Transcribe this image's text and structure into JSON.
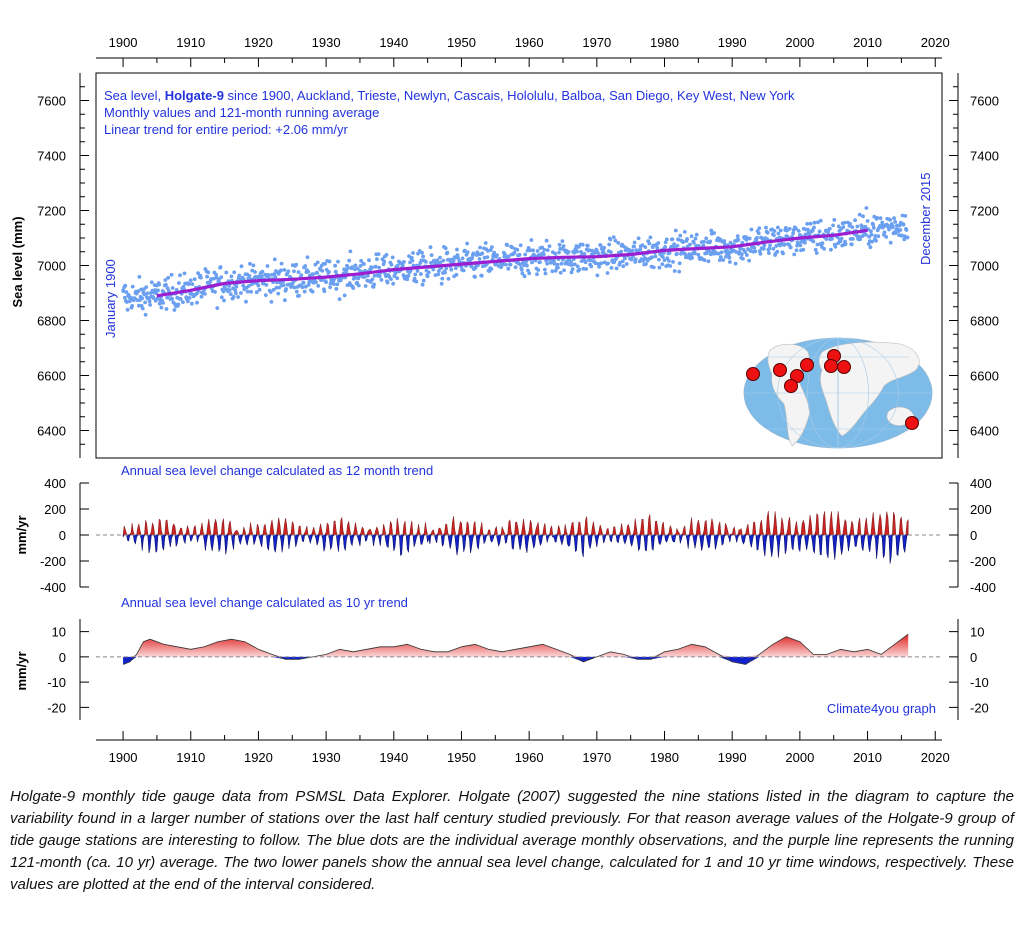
{
  "chart_data": [
    {
      "type": "scatter",
      "title_parts": [
        "Sea level, ",
        "Holgate-9",
        " since 1900, Auckland, Trieste, Newlyn, Cascais, Hololulu, Balboa, San Diego, Key West, New York"
      ],
      "subtitle1": "Monthly values and 121-month running average",
      "subtitle2": "Linear trend for entire period: +2.06 mm/yr",
      "ylabel": "Sea level (mm)",
      "ylim": [
        6300,
        7700
      ],
      "xlim": [
        1896,
        2021
      ],
      "yticks": [
        "6400",
        "6600",
        "6800",
        "7000",
        "7200",
        "7400",
        "7600"
      ],
      "start_label": "January 1900",
      "end_label": "December 2015",
      "dot_color": "#6b9ff0",
      "line_color": "#9b1fd0",
      "running_average": {
        "x": [
          1905,
          1910,
          1915,
          1920,
          1925,
          1930,
          1935,
          1940,
          1945,
          1950,
          1955,
          1960,
          1965,
          1970,
          1975,
          1980,
          1985,
          1990,
          1995,
          2000,
          2005,
          2010
        ],
        "y": [
          6890,
          6910,
          6935,
          6945,
          6950,
          6958,
          6970,
          6985,
          6995,
          7005,
          7015,
          7025,
          7030,
          7032,
          7040,
          7055,
          7062,
          7068,
          7085,
          7100,
          7110,
          7128
        ]
      },
      "map_stations": 9
    },
    {
      "type": "area",
      "title": "Annual sea level change calculated as 12 month trend",
      "ylabel": "mm/yr",
      "ylim": [
        -400,
        400
      ],
      "yticks": [
        "-400",
        "-200",
        "0",
        "200",
        "400"
      ],
      "pos_color": "#cc2222",
      "neg_color": "#1122cc"
    },
    {
      "type": "area",
      "title": "Annual sea level change calculated as 10 yr trend",
      "ylabel": "mm/yr",
      "ylim": [
        -25,
        15
      ],
      "yticks": [
        "-20",
        "-10",
        "0",
        "10"
      ],
      "x": [
        1900,
        1901,
        1902,
        1903,
        1904,
        1906,
        1908,
        1910,
        1912,
        1914,
        1916,
        1918,
        1920,
        1922,
        1924,
        1926,
        1928,
        1930,
        1932,
        1934,
        1936,
        1938,
        1940,
        1942,
        1944,
        1946,
        1948,
        1950,
        1952,
        1954,
        1956,
        1958,
        1960,
        1962,
        1964,
        1966,
        1968,
        1970,
        1972,
        1974,
        1976,
        1978,
        1980,
        1982,
        1984,
        1986,
        1988,
        1990,
        1992,
        1994,
        1996,
        1998,
        2000,
        2002,
        2004,
        2006,
        2008,
        2010,
        2012,
        2014,
        2016
      ],
      "values": [
        -3,
        -2,
        1,
        6,
        7,
        5,
        4,
        3,
        4,
        6,
        7,
        6,
        3,
        1,
        -1,
        -1,
        0,
        1,
        3,
        2,
        3,
        4,
        4,
        5,
        3,
        2,
        2,
        4,
        5,
        3,
        2,
        3,
        4,
        5,
        3,
        1,
        -2,
        0,
        2,
        1,
        -1,
        -1,
        2,
        3,
        5,
        4,
        1,
        -2,
        -3,
        1,
        5,
        8,
        6,
        1,
        1,
        3,
        2,
        3,
        1,
        5,
        9
      ],
      "pos_color": "#dd2222",
      "neg_color": "#1122cc"
    }
  ],
  "x_tick_labels": [
    "1900",
    "1910",
    "1920",
    "1930",
    "1940",
    "1950",
    "1960",
    "1970",
    "1980",
    "1990",
    "2000",
    "2010",
    "2020"
  ],
  "credit": "Climate4you graph",
  "caption": "Holgate-9 monthly tide gauge data from PSMSL Data Explorer. Holgate (2007) suggested the nine stations listed in the diagram to capture the variability found in a larger number of stations over the last half century studied previously. For that reason average values of the Holgate-9 group of tide gauge stations are interesting to follow. The blue dots are the individual average monthly observations, and the purple line represents the running 121-month (ca. 10 yr) average. The two lower panels show the annual sea level change, calculated for 1 and 10 yr time windows, respectively. These values are plotted at the end of the interval considered."
}
